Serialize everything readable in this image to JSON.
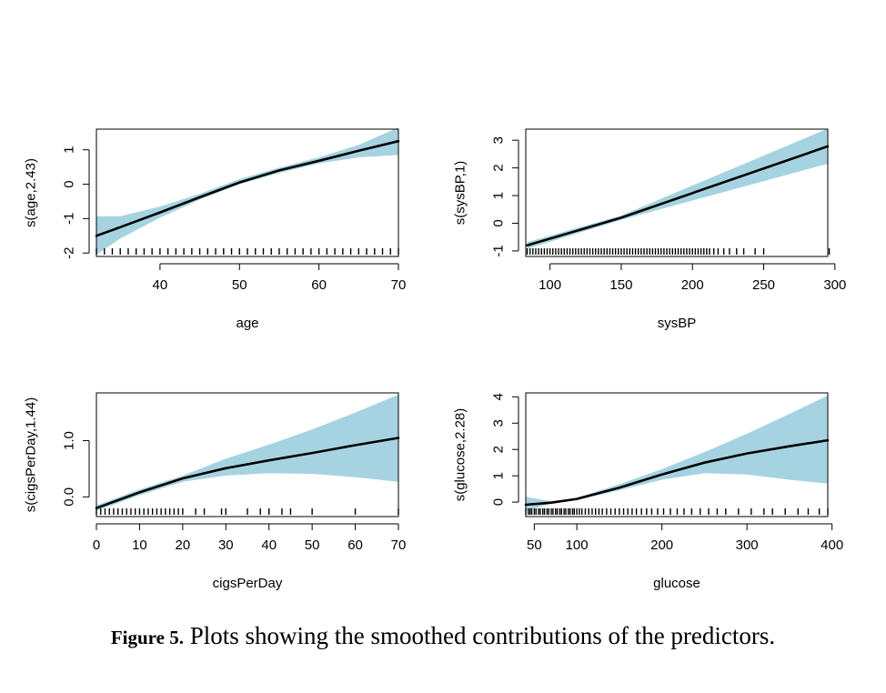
{
  "caption": {
    "label": "Figure 5.",
    "text": "Plots showing the smoothed contributions of the predictors."
  },
  "band_color": "#a6d3e1",
  "line_color": "#000000",
  "chart_data": [
    {
      "type": "line",
      "xlabel": "age",
      "ylabel": "s(age,2.43)",
      "xlim": [
        32,
        70
      ],
      "ylim": [
        -2.1,
        1.6
      ],
      "xticks": [
        40,
        50,
        60,
        70
      ],
      "yticks": [
        -2,
        -1,
        0,
        1
      ],
      "x": [
        32,
        35,
        40,
        45,
        50,
        55,
        60,
        65,
        70
      ],
      "y": [
        -1.5,
        -1.25,
        -0.82,
        -0.38,
        0.05,
        0.4,
        0.68,
        0.97,
        1.25
      ],
      "lower": [
        -2.05,
        -1.58,
        -0.97,
        -0.45,
        0.0,
        0.33,
        0.6,
        0.78,
        0.85
      ],
      "upper": [
        -0.93,
        -0.93,
        -0.65,
        -0.28,
        0.15,
        0.48,
        0.78,
        1.14,
        1.65
      ],
      "rug": [
        32,
        33,
        34,
        35,
        36,
        37,
        38,
        39,
        40,
        41,
        42,
        43,
        44,
        45,
        46,
        47,
        48,
        49,
        50,
        51,
        52,
        53,
        54,
        55,
        56,
        57,
        58,
        59,
        60,
        61,
        62,
        63,
        64,
        65,
        66,
        67,
        68,
        69,
        70
      ]
    },
    {
      "type": "line",
      "xlabel": "sysBP",
      "ylabel": "s(sysBP,1)",
      "xlim": [
        83,
        295
      ],
      "ylim": [
        -1.2,
        3.4
      ],
      "xticks": [
        100,
        150,
        200,
        250,
        300
      ],
      "yticks": [
        -1,
        0,
        1,
        2,
        3
      ],
      "x": [
        84,
        150,
        295
      ],
      "y": [
        -0.8,
        0.2,
        2.78
      ],
      "lower": [
        -0.92,
        0.12,
        2.15
      ],
      "upper": [
        -0.68,
        0.28,
        3.42
      ],
      "rug": [
        84,
        86,
        88,
        90,
        92,
        94,
        96,
        98,
        100,
        102,
        104,
        106,
        108,
        110,
        112,
        114,
        116,
        118,
        120,
        122,
        124,
        126,
        128,
        130,
        132,
        134,
        136,
        138,
        140,
        142,
        144,
        146,
        148,
        150,
        152,
        154,
        156,
        158,
        160,
        162,
        164,
        166,
        168,
        170,
        172,
        174,
        176,
        178,
        180,
        182,
        184,
        186,
        188,
        190,
        192,
        194,
        196,
        198,
        200,
        202,
        204,
        206,
        208,
        210,
        212,
        215,
        218,
        222,
        226,
        231,
        236,
        244,
        250,
        296
      ]
    },
    {
      "type": "line",
      "xlabel": "cigsPerDay",
      "ylabel": "s(cigsPerDay,1.44)",
      "xlim": [
        0,
        70
      ],
      "ylim": [
        -0.35,
        1.85
      ],
      "xticks": [
        0,
        10,
        20,
        30,
        40,
        50,
        60,
        70
      ],
      "yticks": [
        0.0,
        1.0
      ],
      "yticklabels": [
        "0.0",
        "1.0"
      ],
      "x": [
        0,
        10,
        20,
        30,
        40,
        50,
        60,
        70
      ],
      "y": [
        -0.2,
        0.08,
        0.33,
        0.51,
        0.65,
        0.78,
        0.92,
        1.05
      ],
      "lower": [
        -0.25,
        0.03,
        0.27,
        0.38,
        0.42,
        0.41,
        0.35,
        0.27
      ],
      "upper": [
        -0.15,
        0.13,
        0.38,
        0.68,
        0.93,
        1.2,
        1.5,
        1.82
      ],
      "rug": [
        0,
        1,
        2,
        3,
        4,
        5,
        6,
        7,
        8,
        9,
        10,
        11,
        12,
        13,
        14,
        15,
        16,
        17,
        18,
        19,
        20,
        23,
        25,
        29,
        30,
        35,
        38,
        40,
        43,
        45,
        50,
        60,
        70
      ]
    },
    {
      "type": "line",
      "xlabel": "glucose",
      "ylabel": "s(glucose,2.28)",
      "xlim": [
        40,
        395
      ],
      "ylim": [
        -0.55,
        4.15
      ],
      "xticks": [
        50,
        100,
        200,
        300,
        400
      ],
      "yticks": [
        0,
        1,
        2,
        3,
        4
      ],
      "x": [
        40,
        70,
        100,
        150,
        200,
        250,
        300,
        350,
        395
      ],
      "y": [
        -0.1,
        -0.02,
        0.12,
        0.55,
        1.05,
        1.5,
        1.85,
        2.12,
        2.35
      ],
      "lower": [
        -0.33,
        -0.06,
        0.08,
        0.45,
        0.85,
        1.1,
        1.05,
        0.85,
        0.7
      ],
      "upper": [
        0.2,
        0.03,
        0.16,
        0.68,
        1.25,
        1.9,
        2.6,
        3.35,
        4.05
      ],
      "rug": [
        40,
        43,
        45,
        47,
        50,
        52,
        55,
        57,
        60,
        62,
        65,
        67,
        70,
        72,
        75,
        77,
        80,
        82,
        85,
        87,
        90,
        92,
        95,
        97,
        100,
        103,
        106,
        110,
        114,
        118,
        122,
        126,
        130,
        135,
        140,
        145,
        150,
        155,
        160,
        165,
        170,
        176,
        182,
        188,
        195,
        202,
        210,
        218,
        226,
        235,
        245,
        255,
        265,
        275,
        290,
        305,
        320,
        330,
        345,
        360,
        372,
        385,
        395
      ]
    }
  ]
}
